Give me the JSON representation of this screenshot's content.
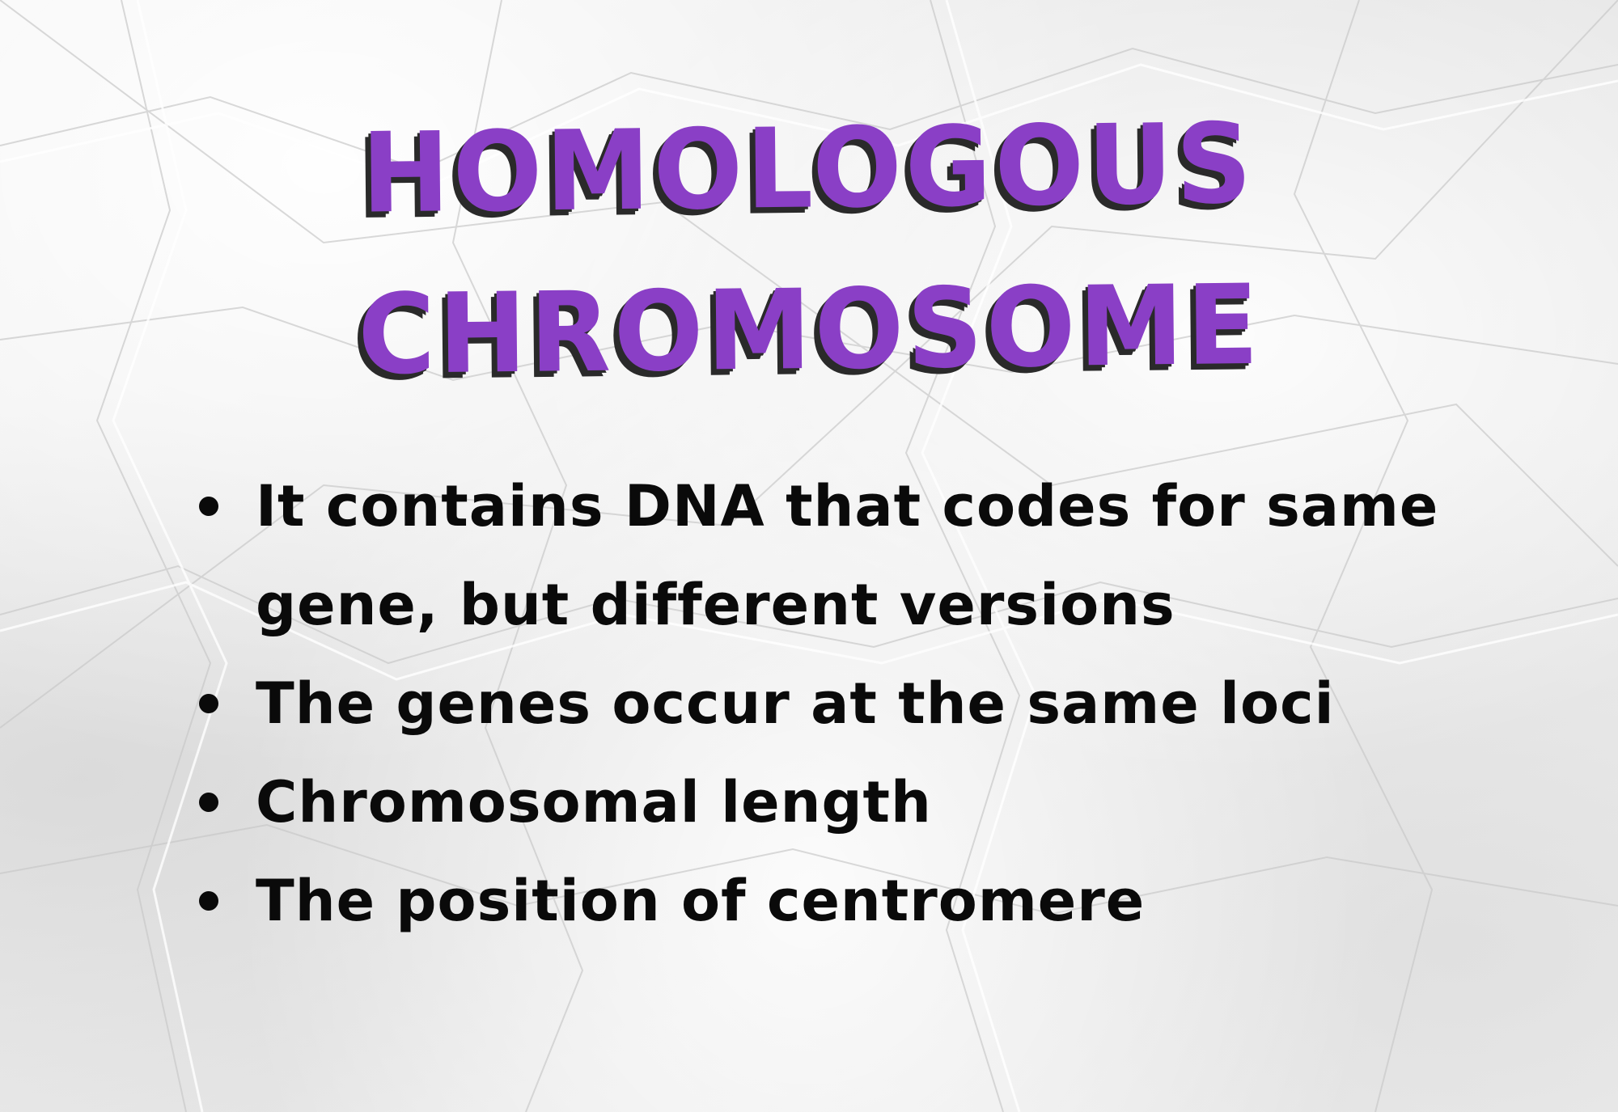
{
  "title": {
    "line1": "HOMOLOGOUS",
    "line2": "CHROMOSOME",
    "color": "#8a3fc6",
    "shadow_color": "#2a2a2a"
  },
  "bullets": [
    {
      "text": "It contains DNA that codes for same gene, but different versions"
    },
    {
      "text": "The genes occur at the same loci"
    },
    {
      "text": "Chromosomal length"
    },
    {
      "text": "The position of centromere"
    }
  ],
  "background": "crumpled white paper"
}
